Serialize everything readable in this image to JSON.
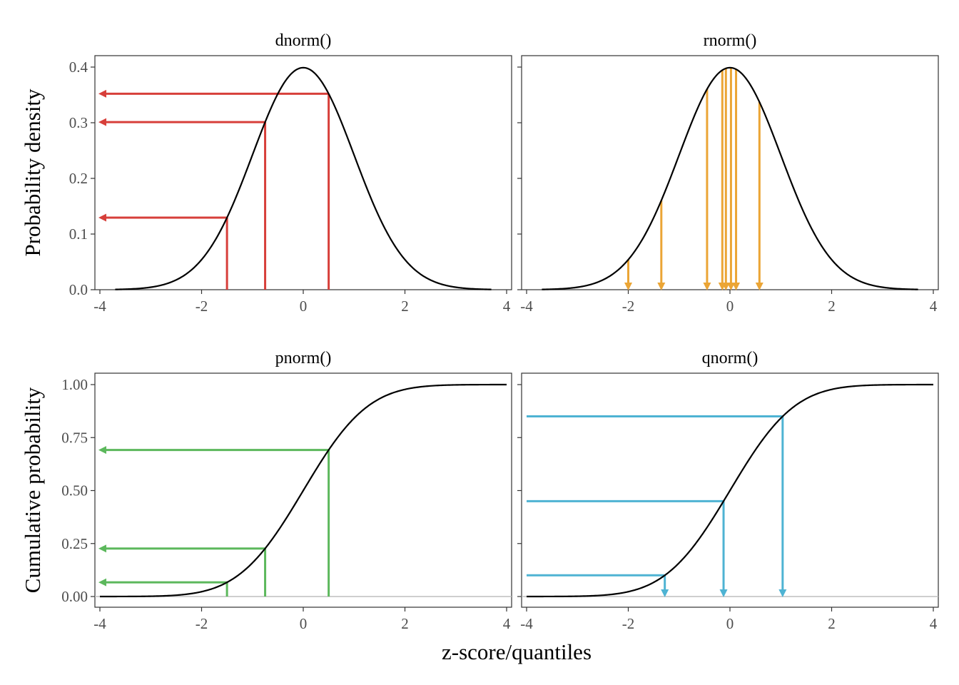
{
  "chart_data": [
    {
      "id": "dnorm",
      "type": "line",
      "title": "dnorm()",
      "curve": "normal-density",
      "xlim": [
        -4,
        4
      ],
      "ylim": [
        0,
        0.4
      ],
      "xticks": [
        "-4",
        "-2",
        "0",
        "2",
        "4"
      ],
      "yticks": [
        "0.0",
        "0.1",
        "0.2",
        "0.3",
        "0.4"
      ],
      "ytick_values": [
        0,
        0.1,
        0.2,
        0.3,
        0.4
      ],
      "ylabel": "Probability density",
      "annotation_type": "x-to-y-left-arrow",
      "annotation_color": "#d73f3a",
      "annotations": [
        {
          "x": -1.5,
          "y": 0.1295
        },
        {
          "x": -0.75,
          "y": 0.3011
        },
        {
          "x": 0.5,
          "y": 0.3521
        }
      ]
    },
    {
      "id": "rnorm",
      "type": "line",
      "title": "rnorm()",
      "curve": "normal-density",
      "xlim": [
        -4,
        4
      ],
      "ylim": [
        0,
        0.4
      ],
      "xticks": [
        "-4",
        "-2",
        "0",
        "2",
        "4"
      ],
      "yticks": [],
      "ytick_values": [
        0,
        0.1,
        0.2,
        0.3,
        0.4
      ],
      "annotation_type": "down-arrow",
      "annotation_color": "#eba535",
      "annotations": [
        {
          "x": -2.0
        },
        {
          "x": -1.35
        },
        {
          "x": -0.45
        },
        {
          "x": -0.15
        },
        {
          "x": -0.08
        },
        {
          "x": 0.02
        },
        {
          "x": 0.12
        },
        {
          "x": 0.58
        }
      ]
    },
    {
      "id": "pnorm",
      "type": "line",
      "title": "pnorm()",
      "curve": "normal-cdf",
      "xlim": [
        -4,
        4
      ],
      "ylim": [
        0,
        1
      ],
      "xticks": [
        "-4",
        "-2",
        "0",
        "2",
        "4"
      ],
      "yticks": [
        "0.00",
        "0.25",
        "0.50",
        "0.75",
        "1.00"
      ],
      "ytick_values": [
        0,
        0.25,
        0.5,
        0.75,
        1.0
      ],
      "ylabel": "Cumulative probability",
      "baseline": 0,
      "annotation_type": "x-to-y-left-arrow",
      "annotation_color": "#5cb85c",
      "annotations": [
        {
          "x": -1.5,
          "y": 0.0668
        },
        {
          "x": -0.75,
          "y": 0.2266
        },
        {
          "x": 0.5,
          "y": 0.6915
        }
      ]
    },
    {
      "id": "qnorm",
      "type": "line",
      "title": "qnorm()",
      "curve": "normal-cdf",
      "xlim": [
        -4,
        4
      ],
      "ylim": [
        0,
        1
      ],
      "xticks": [
        "-4",
        "-2",
        "0",
        "2",
        "4"
      ],
      "yticks": [],
      "ytick_values": [
        0,
        0.25,
        0.5,
        0.75,
        1.0
      ],
      "baseline": 0,
      "annotation_type": "y-to-x-down-arrow",
      "annotation_color": "#4eb3d3",
      "annotations": [
        {
          "p": 0.1,
          "x": -1.2816
        },
        {
          "p": 0.45,
          "x": -0.1257
        },
        {
          "p": 0.85,
          "x": 1.0364
        }
      ]
    }
  ],
  "xlabel": "z-score/quantiles"
}
